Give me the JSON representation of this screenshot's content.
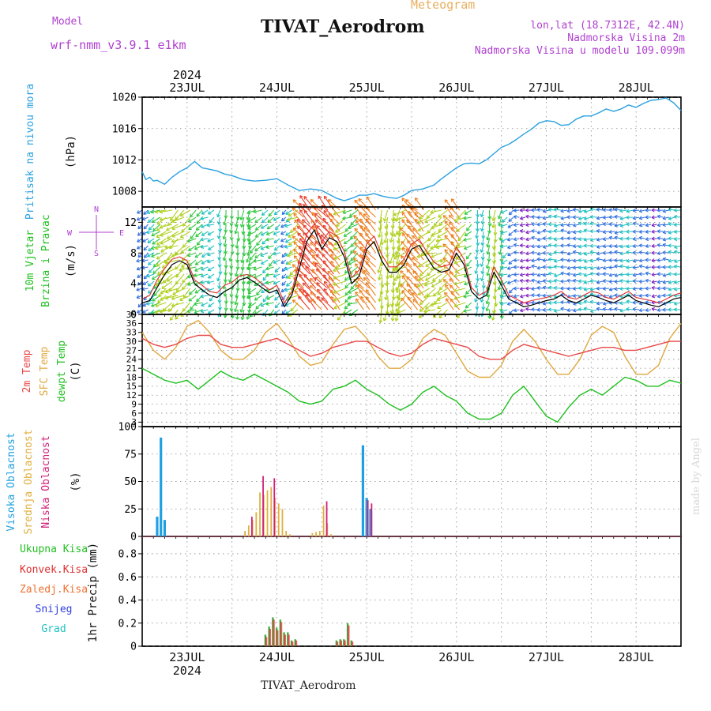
{
  "header": {
    "model_label": "Model",
    "model_name": "wrf-nmm_v3.9.1  e1km",
    "station": "TIVAT_Aerodrom",
    "product": "Meteogram",
    "lonlat": "lon,lat (18.7312E, 42.4N)",
    "elevation": "Nadmorska Visina 2m",
    "model_elevation": "Nadmorska Visina u modelu 109.099m",
    "footer_station": "TIVAT_Aerodrom",
    "credit": "made by Angel"
  },
  "colors": {
    "pressure": "#2aa0e0",
    "wind_black": "#000000",
    "wind_red": "#e03030",
    "temp2m": "#e84848",
    "sfc": "#e0a840",
    "dew": "#20c020",
    "high_cloud": "#20a0e0",
    "mid_cloud": "#e0b040",
    "low_cloud": "#d0207a",
    "total_precip": "#40b040",
    "conv_precip": "#e03030",
    "grid": "#888888",
    "title_purple": "#b040d0"
  },
  "time_axis": {
    "year": "2024",
    "days": [
      "23JUL",
      "24JUL",
      "25JUL",
      "26JUL",
      "27JUL",
      "28JUL"
    ],
    "start_hour": 12,
    "range_hours": [
      0,
      144
    ]
  },
  "chart_data": [
    {
      "type": "line",
      "panel": "pressure",
      "ylabel_main": "Pritisak na nivou mora",
      "ylabel_unit": "(hPa)",
      "yticks": [
        "1008",
        "1012",
        "1016",
        "1020"
      ],
      "ylim": [
        1006,
        1020
      ],
      "grid": true,
      "series": [
        {
          "x": [
            0,
            1,
            2,
            3,
            4,
            6,
            8,
            10,
            12,
            14,
            16,
            18,
            20,
            22,
            24,
            27,
            30,
            33,
            36,
            39,
            42,
            45,
            48,
            50,
            52,
            54,
            56,
            58,
            60,
            62,
            64,
            66,
            68,
            70,
            72,
            75,
            78,
            80,
            82,
            84,
            86,
            88,
            90,
            92,
            94,
            96,
            98,
            100,
            102,
            104,
            106,
            108,
            110,
            112,
            114,
            116,
            118,
            120,
            122,
            124,
            126,
            128,
            130,
            132,
            134,
            136,
            138,
            140,
            142,
            143,
            144
          ],
          "y": [
            1010.5,
            1009.5,
            1009.8,
            1009.3,
            1009.4,
            1008.9,
            1009.8,
            1010.5,
            1011.0,
            1011.8,
            1011.0,
            1010.8,
            1010.6,
            1010.2,
            1010.0,
            1009.5,
            1009.3,
            1009.4,
            1009.6,
            1008.8,
            1008.1,
            1008.3,
            1008.1,
            1007.6,
            1007.1,
            1006.8,
            1007.1,
            1007.5,
            1007.5,
            1007.7,
            1007.4,
            1007.2,
            1007.1,
            1007.5,
            1008.1,
            1008.3,
            1008.8,
            1009.6,
            1010.3,
            1011.0,
            1011.5,
            1011.6,
            1011.5,
            1012.0,
            1012.8,
            1013.6,
            1014.0,
            1014.6,
            1015.3,
            1015.9,
            1016.7,
            1017.0,
            1016.9,
            1016.4,
            1016.5,
            1017.2,
            1017.6,
            1017.6,
            1018.0,
            1018.5,
            1018.2,
            1018.5,
            1019.0,
            1018.7,
            1019.2,
            1019.6,
            1019.7,
            1019.9,
            1019.3,
            1018.8,
            1018.3
          ]
        }
      ]
    },
    {
      "type": "line",
      "panel": "wind",
      "ylabel_main": "10m Vjetar",
      "ylabel_sub": "Brzina i Pravac",
      "ylabel_unit": "(m/s)",
      "direction_legend": [
        "N",
        "W",
        "E",
        "S"
      ],
      "yticks": [
        "0",
        "4",
        "8",
        "12"
      ],
      "ylim": [
        0,
        14
      ],
      "grid": true,
      "series": [
        {
          "name": "speed",
          "x": [
            0,
            2,
            4,
            6,
            8,
            10,
            12,
            14,
            16,
            18,
            20,
            22,
            24,
            26,
            28,
            30,
            32,
            34,
            36,
            38,
            40,
            42,
            44,
            46,
            48,
            50,
            52,
            54,
            56,
            58,
            60,
            62,
            64,
            66,
            68,
            70,
            72,
            74,
            76,
            78,
            80,
            82,
            84,
            86,
            88,
            90,
            92,
            94,
            96,
            98,
            100,
            102,
            104,
            106,
            108,
            110,
            112,
            114,
            116,
            118,
            120,
            122,
            124,
            126,
            128,
            130,
            132,
            134,
            136,
            138,
            140,
            142,
            144
          ],
          "y": [
            1.5,
            1.8,
            3.5,
            5.2,
            6.5,
            7.0,
            6.5,
            4.0,
            3.2,
            2.5,
            2.2,
            3.0,
            3.5,
            4.5,
            4.8,
            4.2,
            3.5,
            2.8,
            3.2,
            1.0,
            2.5,
            6.0,
            9.5,
            11.0,
            8.5,
            10.0,
            9.5,
            7.5,
            4.0,
            5.0,
            8.5,
            9.5,
            7.0,
            5.5,
            5.5,
            6.5,
            8.5,
            9.0,
            7.5,
            6.0,
            5.5,
            5.8,
            8.0,
            6.5,
            3.0,
            2.0,
            2.5,
            5.5,
            3.8,
            2.0,
            1.5,
            1.0,
            1.2,
            1.5,
            1.8,
            2.0,
            2.5,
            1.8,
            1.5,
            2.0,
            2.5,
            2.2,
            1.8,
            1.5,
            2.0,
            2.5,
            1.8,
            1.5,
            1.2,
            1.0,
            1.5,
            2.0,
            2.2
          ]
        },
        {
          "name": "gust",
          "x": [
            0,
            2,
            4,
            6,
            8,
            10,
            12,
            14,
            16,
            18,
            20,
            22,
            24,
            26,
            28,
            30,
            32,
            34,
            36,
            38,
            40,
            42,
            44,
            46,
            48,
            50,
            52,
            54,
            56,
            58,
            60,
            62,
            64,
            66,
            68,
            70,
            72,
            74,
            76,
            78,
            80,
            82,
            84,
            86,
            88,
            90,
            92,
            94,
            96,
            98,
            100,
            102,
            104,
            106,
            108,
            110,
            112,
            114,
            116,
            118,
            120,
            122,
            124,
            126,
            128,
            130,
            132,
            134,
            136,
            138,
            140,
            142,
            144
          ],
          "y": [
            2.0,
            2.5,
            4.5,
            6.0,
            7.2,
            7.5,
            7.0,
            4.5,
            3.8,
            3.0,
            2.8,
            3.8,
            4.2,
            5.0,
            5.2,
            4.8,
            4.0,
            3.2,
            3.8,
            1.5,
            3.0,
            7.0,
            10.5,
            11.8,
            9.5,
            10.8,
            10.2,
            8.2,
            4.8,
            5.8,
            9.2,
            10.2,
            7.8,
            6.2,
            6.2,
            7.2,
            9.2,
            9.8,
            8.2,
            6.8,
            6.2,
            6.5,
            8.8,
            7.2,
            3.5,
            2.5,
            3.0,
            6.2,
            4.5,
            2.5,
            2.0,
            1.5,
            1.8,
            2.0,
            2.2,
            2.5,
            3.0,
            2.2,
            2.0,
            2.5,
            3.0,
            2.8,
            2.2,
            2.0,
            2.5,
            3.0,
            2.2,
            2.0,
            1.8,
            1.5,
            2.0,
            2.5,
            2.8
          ]
        }
      ]
    },
    {
      "type": "line",
      "panel": "temperature",
      "ylabel_lines": [
        "2m Temp",
        "SFC Temp",
        "dewpt Temp"
      ],
      "ylabel_unit": "(C)",
      "yticks": [
        "3",
        "6",
        "9",
        "12",
        "15",
        "18",
        "21",
        "24",
        "27",
        "30",
        "33",
        "36",
        "39"
      ],
      "ylim": [
        1.5,
        39
      ],
      "grid": true,
      "series": [
        {
          "name": "2m Temp",
          "x": [
            0,
            3,
            6,
            9,
            12,
            15,
            18,
            21,
            24,
            27,
            30,
            33,
            36,
            39,
            42,
            45,
            48,
            51,
            54,
            57,
            60,
            63,
            66,
            69,
            72,
            75,
            78,
            81,
            84,
            87,
            90,
            93,
            96,
            99,
            102,
            105,
            108,
            111,
            114,
            117,
            120,
            123,
            126,
            129,
            132,
            135,
            138,
            141,
            144
          ],
          "y": [
            31,
            29,
            28,
            29,
            31,
            32,
            32,
            29,
            28,
            28,
            29,
            30,
            31,
            29,
            27,
            25,
            26,
            28,
            29,
            30,
            30,
            28,
            26,
            25,
            26,
            29,
            31,
            30,
            29,
            28,
            25,
            24,
            24,
            27,
            29,
            28,
            27,
            26,
            25,
            26,
            27,
            28,
            28,
            27,
            27,
            28,
            29,
            30,
            30
          ]
        },
        {
          "name": "SFC Temp",
          "x": [
            0,
            3,
            6,
            9,
            12,
            15,
            18,
            21,
            24,
            27,
            30,
            33,
            36,
            39,
            42,
            45,
            48,
            51,
            54,
            57,
            60,
            63,
            66,
            69,
            72,
            75,
            78,
            81,
            84,
            87,
            90,
            93,
            96,
            99,
            102,
            105,
            108,
            111,
            114,
            117,
            120,
            123,
            126,
            129,
            132,
            135,
            138,
            141,
            144
          ],
          "y": [
            33,
            27,
            24,
            28,
            35,
            37,
            33,
            27,
            24,
            24,
            27,
            33,
            36,
            31,
            25,
            22,
            23,
            29,
            34,
            35,
            31,
            25,
            21,
            21,
            24,
            31,
            34,
            32,
            26,
            20,
            18,
            18,
            22,
            30,
            34,
            30,
            24,
            19,
            19,
            24,
            32,
            35,
            33,
            25,
            19,
            19,
            22,
            31,
            36
          ]
        },
        {
          "name": "dewpt Temp",
          "x": [
            0,
            3,
            6,
            9,
            12,
            15,
            18,
            21,
            24,
            27,
            30,
            33,
            36,
            39,
            42,
            45,
            48,
            51,
            54,
            57,
            60,
            63,
            66,
            69,
            72,
            75,
            78,
            81,
            84,
            87,
            90,
            93,
            96,
            99,
            102,
            105,
            108,
            111,
            114,
            117,
            120,
            123,
            126,
            129,
            132,
            135,
            138,
            141,
            144
          ],
          "y": [
            21,
            19,
            17,
            16,
            17,
            14,
            17,
            20,
            18,
            17,
            19,
            17,
            15,
            13,
            10,
            9,
            10,
            14,
            15,
            17,
            14,
            12,
            9,
            7,
            9,
            13,
            15,
            12,
            10,
            6,
            4,
            4,
            6,
            12,
            15,
            10,
            5,
            3,
            8,
            12,
            14,
            12,
            15,
            18,
            17,
            15,
            15,
            17,
            16
          ]
        }
      ]
    },
    {
      "type": "bar",
      "panel": "cloud",
      "ylabel_lines": [
        "Visoka Oblacnost",
        "Srednja Oblacnost",
        "Niska Oblacnost"
      ],
      "ylabel_unit": "(%)",
      "yticks": [
        "0",
        "25",
        "50",
        "75",
        "100"
      ],
      "ylim": [
        0,
        100
      ],
      "grid": true,
      "series": [
        {
          "name": "Visoka Oblacnost",
          "x": [
            4,
            5,
            6,
            59,
            60,
            61
          ],
          "y": [
            18,
            90,
            15,
            83,
            35,
            25
          ]
        },
        {
          "name": "Srednja Oblacnost",
          "x": [
            28,
            29,
            30,
            31,
            32,
            33,
            34,
            35,
            36,
            37,
            38,
            39,
            40,
            41,
            46,
            47,
            48,
            49,
            50,
            51,
            52,
            53,
            54,
            55,
            56,
            57,
            58,
            59,
            60,
            61
          ],
          "y": [
            5,
            10,
            15,
            22,
            40,
            38,
            42,
            45,
            35,
            30,
            25,
            5,
            2,
            0,
            3,
            4,
            5,
            28,
            12,
            2,
            0,
            0,
            0,
            0,
            0,
            0,
            0,
            0,
            0,
            0
          ]
        },
        {
          "name": "Niska Oblacnost",
          "x": [
            28,
            29,
            30,
            31,
            32,
            33,
            34,
            35,
            36,
            37,
            38,
            39,
            40,
            41,
            46,
            47,
            48,
            49,
            50,
            51,
            52,
            53,
            54,
            55,
            56,
            57,
            58,
            59,
            60,
            61
          ],
          "y": [
            0,
            18,
            0,
            0,
            55,
            0,
            0,
            53,
            0,
            0,
            0,
            0,
            0,
            0,
            0,
            0,
            0,
            32,
            0,
            0,
            0,
            0,
            0,
            0,
            0,
            0,
            0,
            0,
            33,
            30
          ]
        }
      ]
    },
    {
      "type": "bar",
      "panel": "precipitation",
      "ylabel_lines": [
        "Ukupna Kisa",
        "Konvek.Kisa",
        "Zaledj.Kisa",
        "Snijeg",
        "Grad"
      ],
      "ylabel_unit": "1hr Precip (mm)",
      "yticks": [
        "0",
        "0.2",
        "0.4",
        "0.6",
        "0.8"
      ],
      "ylim": [
        0,
        0.95
      ],
      "grid": true,
      "series": [
        {
          "name": "Ukupna Kisa",
          "x": [
            33,
            34,
            35,
            36,
            37,
            38,
            39,
            40,
            41,
            42,
            52,
            53,
            54,
            55,
            56
          ],
          "y": [
            0.1,
            0.17,
            0.25,
            0.16,
            0.23,
            0.12,
            0.12,
            0.05,
            0.06,
            0.0,
            0.05,
            0.06,
            0.06,
            0.2,
            0.05
          ]
        },
        {
          "name": "Konvek.Kisa",
          "x": [
            33,
            34,
            35,
            36,
            37,
            38,
            39,
            40,
            41,
            42,
            52,
            53,
            54,
            55,
            56
          ],
          "y": [
            0.08,
            0.15,
            0.23,
            0.14,
            0.21,
            0.1,
            0.1,
            0.04,
            0.05,
            0.0,
            0.04,
            0.05,
            0.05,
            0.18,
            0.04
          ]
        }
      ]
    }
  ]
}
